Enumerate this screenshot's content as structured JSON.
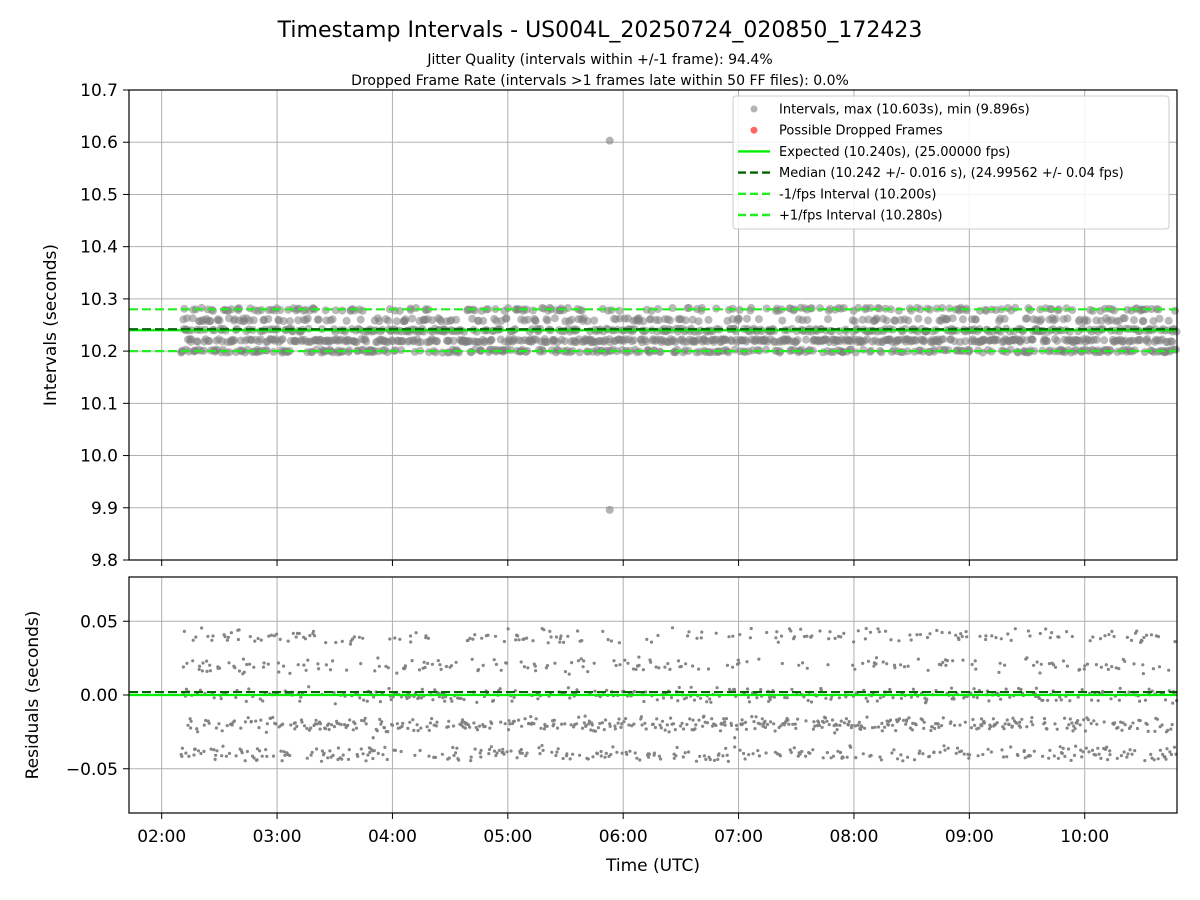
{
  "figure": {
    "title": "Timestamp Intervals - US004L_20250724_020850_172423",
    "subtitle1": "Jitter Quality (intervals within +/-1 frame): 94.4%",
    "subtitle2": "Dropped Frame Rate (intervals >1 frames late within 50 FF files): 0.0%"
  },
  "colors": {
    "points": "#808080",
    "dropped": "#ff0000",
    "expected": "#00ee00",
    "median": "#006400",
    "fps_interval": "#22ee22",
    "grid": "#b0b0b0"
  },
  "chart_data": [
    {
      "type": "scatter",
      "ylabel": "Intervals (seconds)",
      "xlim": [
        "01:43",
        "10:48"
      ],
      "ylim": [
        9.8,
        10.7
      ],
      "yticks": [
        "9.8",
        "9.9",
        "10.0",
        "10.1",
        "10.2",
        "10.3",
        "10.4",
        "10.5",
        "10.6",
        "10.7"
      ],
      "grid": true,
      "legend_position": "top-right",
      "data_start": "02:10",
      "data_end": "10:48",
      "interval_levels": [
        10.2,
        10.22,
        10.24,
        10.26,
        10.28
      ],
      "outliers": [
        {
          "x": "05:53",
          "y": 10.603
        },
        {
          "x": "05:53",
          "y": 9.896
        },
        {
          "x": "05:07",
          "y": 10.2
        },
        {
          "x": "07:53",
          "y": 10.2
        }
      ],
      "lines": [
        {
          "name": "Expected (10.240s), (25.00000 fps)",
          "y": 10.24,
          "style": "solid"
        },
        {
          "name": "Median (10.242 +/- 0.016 s), (24.99562 +/- 0.04 fps)",
          "y": 10.242,
          "style": "dashed"
        },
        {
          "name": "-1/fps Interval (10.200s)",
          "y": 10.2,
          "style": "dashed"
        },
        {
          "name": "+1/fps Interval (10.280s)",
          "y": 10.28,
          "style": "dashed"
        }
      ],
      "legend": [
        "Intervals, max (10.603s), min (9.896s)",
        "Possible Dropped Frames",
        "Expected (10.240s), (25.00000 fps)",
        "Median (10.242 +/- 0.016 s), (24.99562 +/- 0.04 fps)",
        "-1/fps Interval (10.200s)",
        "+1/fps Interval (10.280s)"
      ]
    },
    {
      "type": "scatter",
      "ylabel": "Residuals (seconds)",
      "xlabel": "Time (UTC)",
      "xlim": [
        "01:43",
        "10:48"
      ],
      "ylim": [
        -0.08,
        0.08
      ],
      "yticks": [
        {
          "v": -0.05,
          "label": "−0.05"
        },
        {
          "v": 0.0,
          "label": "0.00"
        },
        {
          "v": 0.05,
          "label": "0.05"
        }
      ],
      "xticks": [
        "02:00",
        "03:00",
        "04:00",
        "05:00",
        "06:00",
        "07:00",
        "08:00",
        "09:00",
        "10:00"
      ],
      "grid": true,
      "residual_levels": [
        -0.02,
        0.0,
        0.02,
        0.04
      ],
      "outliers": [
        {
          "x": "05:07",
          "y": -0.037
        },
        {
          "x": "07:53",
          "y": -0.039
        },
        {
          "x": "03:50",
          "y": -0.029
        },
        {
          "x": "06:58",
          "y": -0.029
        }
      ],
      "lines": [
        {
          "name": "Expected",
          "y": 0.0,
          "style": "solid"
        },
        {
          "name": "Median",
          "y": 0.002,
          "style": "dashed"
        }
      ]
    }
  ]
}
